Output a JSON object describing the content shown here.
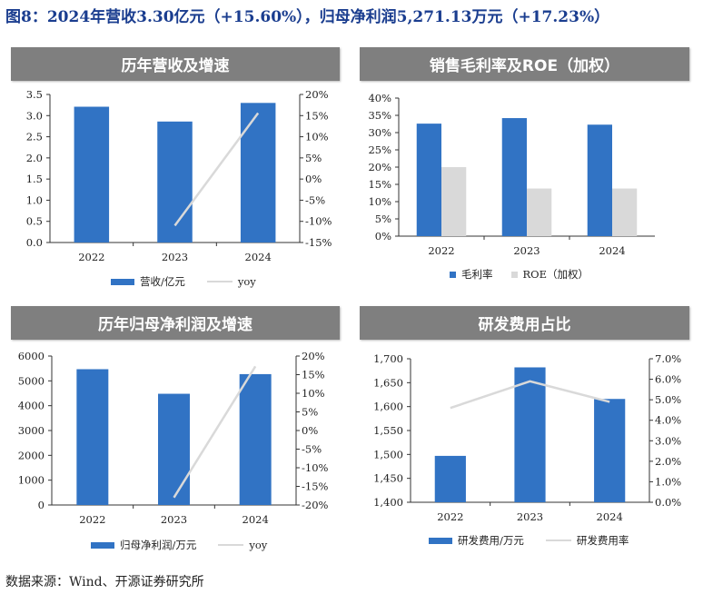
{
  "figure_title": "图8：2024年营收3.30亿元（+15.60%），归母净利润5,271.13万元（+17.23%）",
  "source": "数据来源：Wind、开源证券研究所",
  "colors": {
    "bar": "#3173c4",
    "secondary": "#d9d9d9",
    "line": "#d9d9d9",
    "title_bar": "#7f7f7f",
    "title_text": "#1a3d8f"
  },
  "chart_data": [
    {
      "title": "历年营收及增速",
      "type": "bar+line",
      "categories": [
        "2022",
        "2023",
        "2024"
      ],
      "series": [
        {
          "name": "营收/亿元",
          "type": "bar",
          "axis": "left",
          "values": [
            3.21,
            2.86,
            3.3
          ]
        },
        {
          "name": "yoy",
          "type": "line",
          "axis": "right",
          "values": [
            null,
            -11.0,
            15.6
          ]
        }
      ],
      "left_axis": {
        "range": [
          0,
          3.5
        ],
        "ticks": [
          "0.0",
          "0.5",
          "1.0",
          "1.5",
          "2.0",
          "2.5",
          "3.0",
          "3.5"
        ]
      },
      "right_axis": {
        "range": [
          -15,
          20
        ],
        "ticks": [
          "-15%",
          "-10%",
          "-5%",
          "0%",
          "5%",
          "10%",
          "15%",
          "20%"
        ]
      },
      "legend_position": "bottom"
    },
    {
      "title": "销售毛利率及ROE（加权）",
      "type": "bar",
      "categories": [
        "2022",
        "2023",
        "2024"
      ],
      "series": [
        {
          "name": "毛利率",
          "type": "bar",
          "axis": "left",
          "values": [
            32.6,
            34.2,
            32.3
          ]
        },
        {
          "name": "ROE（加权）",
          "type": "bar",
          "axis": "left",
          "values": [
            20.0,
            13.8,
            13.8
          ]
        }
      ],
      "left_axis": {
        "range": [
          0,
          40
        ],
        "ticks": [
          "0%",
          "5%",
          "10%",
          "15%",
          "20%",
          "25%",
          "30%",
          "35%",
          "40%"
        ]
      },
      "legend_position": "bottom"
    },
    {
      "title": "历年归母净利润及增速",
      "type": "bar+line",
      "categories": [
        "2022",
        "2023",
        "2024"
      ],
      "series": [
        {
          "name": "归母净利润/万元",
          "type": "bar",
          "axis": "left",
          "values": [
            5470,
            4480,
            5271.13
          ]
        },
        {
          "name": "yoy",
          "type": "line",
          "axis": "right",
          "values": [
            null,
            -18.0,
            17.23
          ]
        }
      ],
      "left_axis": {
        "range": [
          0,
          6000
        ],
        "ticks": [
          "0",
          "1000",
          "2000",
          "3000",
          "4000",
          "5000",
          "6000"
        ]
      },
      "right_axis": {
        "range": [
          -20,
          20
        ],
        "ticks": [
          "-20%",
          "-15%",
          "-10%",
          "-5%",
          "0%",
          "5%",
          "10%",
          "15%",
          "20%"
        ]
      },
      "legend_position": "bottom"
    },
    {
      "title": "研发费用占比",
      "type": "bar+line",
      "categories": [
        "2022",
        "2023",
        "2024"
      ],
      "series": [
        {
          "name": "研发费用/万元",
          "type": "bar",
          "axis": "left",
          "values": [
            1497,
            1682,
            1616
          ]
        },
        {
          "name": "研发费用率",
          "type": "line",
          "axis": "right",
          "values": [
            4.6,
            5.9,
            4.9
          ]
        }
      ],
      "left_axis": {
        "range": [
          1400,
          1700
        ],
        "ticks": [
          "1,400",
          "1,450",
          "1,500",
          "1,550",
          "1,600",
          "1,650",
          "1,700"
        ]
      },
      "right_axis": {
        "range": [
          0,
          7
        ],
        "ticks": [
          "0.0%",
          "1.0%",
          "2.0%",
          "3.0%",
          "4.0%",
          "5.0%",
          "6.0%",
          "7.0%"
        ]
      },
      "legend_position": "bottom"
    }
  ]
}
